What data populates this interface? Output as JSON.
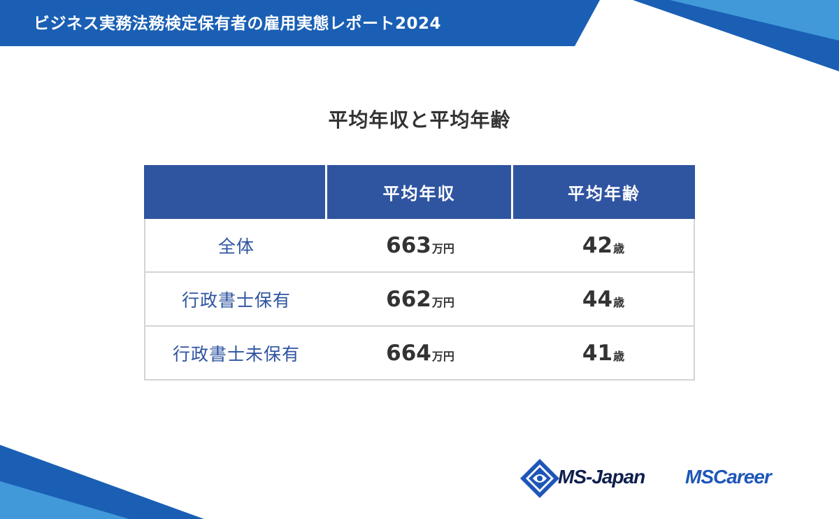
{
  "header": {
    "title": "ビジネス実務法務検定保有者の雇用実態レポート2024"
  },
  "page": {
    "title": "平均年収と平均年齢"
  },
  "table": {
    "columns": [
      "",
      "平均年収",
      "平均年齢"
    ],
    "rows": [
      {
        "label": "全体",
        "income": "663",
        "income_unit": "万円",
        "age": "42",
        "age_unit": "歳"
      },
      {
        "label": "行政書士保有",
        "income": "662",
        "income_unit": "万円",
        "age": "44",
        "age_unit": "歳"
      },
      {
        "label": "行政書士未保有",
        "income": "664",
        "income_unit": "万円",
        "age": "41",
        "age_unit": "歳"
      }
    ]
  },
  "logos": {
    "ms_japan": "MS-Japan",
    "ms_career": "MSCareer"
  },
  "colors": {
    "primary_blue": "#2f54a0",
    "banner_blue": "#1a5fb4",
    "light_blue": "#4aa3e0",
    "text": "#333333"
  }
}
